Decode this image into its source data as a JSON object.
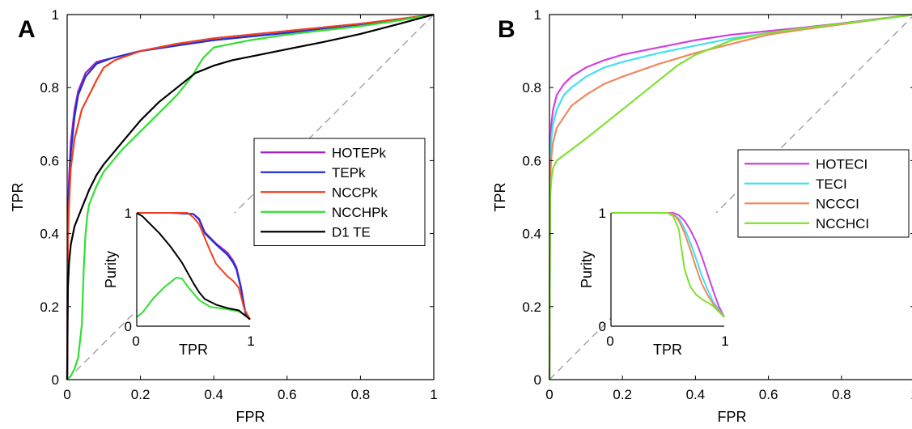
{
  "chart_data": [
    {
      "type": "line",
      "panel_label": "A",
      "xlabel": "FPR",
      "ylabel": "TPR",
      "xlim": [
        0,
        1
      ],
      "ylim": [
        0,
        1
      ],
      "xticks": [
        "0",
        "0.2",
        "0.4",
        "0.6",
        "0.8",
        "1"
      ],
      "yticks": [
        "0",
        "0.2",
        "0.4",
        "0.6",
        "0.8",
        "1"
      ],
      "diagonal_reference": true,
      "legend_placement": "center-right",
      "series": [
        {
          "name": "HOTEPk",
          "color": "#a020c0",
          "x": [
            0,
            0.002,
            0.005,
            0.01,
            0.02,
            0.03,
            0.05,
            0.08,
            0.12,
            0.2,
            0.3,
            0.4,
            0.5,
            0.6,
            0.7,
            0.8,
            0.9,
            1.0
          ],
          "y": [
            0,
            0.45,
            0.55,
            0.65,
            0.74,
            0.79,
            0.84,
            0.87,
            0.88,
            0.9,
            0.92,
            0.935,
            0.945,
            0.955,
            0.965,
            0.975,
            0.987,
            1.0
          ]
        },
        {
          "name": "TEPk",
          "color": "#2030d0",
          "x": [
            0,
            0.002,
            0.005,
            0.01,
            0.02,
            0.03,
            0.05,
            0.08,
            0.12,
            0.2,
            0.3,
            0.4,
            0.5,
            0.6,
            0.7,
            0.8,
            0.9,
            1.0
          ],
          "y": [
            0,
            0.42,
            0.52,
            0.62,
            0.72,
            0.78,
            0.83,
            0.865,
            0.88,
            0.9,
            0.915,
            0.93,
            0.94,
            0.95,
            0.962,
            0.973,
            0.986,
            1.0
          ]
        },
        {
          "name": "NCCPk",
          "color": "#f04020",
          "x": [
            0,
            0.002,
            0.005,
            0.01,
            0.02,
            0.04,
            0.06,
            0.08,
            0.1,
            0.13,
            0.2,
            0.3,
            0.4,
            0.5,
            0.6,
            0.7,
            0.8,
            0.9,
            1.0
          ],
          "y": [
            0,
            0.38,
            0.48,
            0.58,
            0.66,
            0.74,
            0.78,
            0.82,
            0.855,
            0.875,
            0.9,
            0.92,
            0.935,
            0.945,
            0.955,
            0.965,
            0.975,
            0.987,
            1.0
          ]
        },
        {
          "name": "NCCHPk",
          "color": "#30e030",
          "x": [
            0,
            0.01,
            0.02,
            0.03,
            0.04,
            0.045,
            0.05,
            0.055,
            0.06,
            0.08,
            0.1,
            0.15,
            0.2,
            0.25,
            0.3,
            0.34,
            0.37,
            0.4,
            0.5,
            0.6,
            0.7,
            0.8,
            0.9,
            1.0
          ],
          "y": [
            0,
            0.01,
            0.03,
            0.06,
            0.15,
            0.3,
            0.4,
            0.45,
            0.48,
            0.53,
            0.57,
            0.63,
            0.68,
            0.73,
            0.78,
            0.83,
            0.88,
            0.91,
            0.93,
            0.945,
            0.957,
            0.968,
            0.983,
            1.0
          ]
        },
        {
          "name": "D1 TE",
          "color": "#000000",
          "x": [
            0,
            0.002,
            0.005,
            0.01,
            0.02,
            0.04,
            0.06,
            0.08,
            0.1,
            0.15,
            0.2,
            0.25,
            0.3,
            0.35,
            0.4,
            0.45,
            0.5,
            0.6,
            0.7,
            0.8,
            0.9,
            1.0
          ],
          "y": [
            0,
            0.25,
            0.32,
            0.37,
            0.42,
            0.47,
            0.52,
            0.56,
            0.59,
            0.65,
            0.71,
            0.76,
            0.8,
            0.84,
            0.86,
            0.875,
            0.885,
            0.905,
            0.925,
            0.947,
            0.973,
            1.0
          ]
        }
      ],
      "inset": {
        "xlabel": "TPR",
        "ylabel": "Purity",
        "xticks": [
          "0",
          "1"
        ],
        "yticks": [
          "0",
          "1"
        ],
        "series": [
          {
            "name": "HOTEPk",
            "color": "#a020c0",
            "x": [
              0,
              0.1,
              0.3,
              0.5,
              0.55,
              0.6,
              0.7,
              0.8,
              0.85,
              0.88,
              0.92,
              0.96,
              1.0
            ],
            "y": [
              1,
              1,
              1,
              0.99,
              0.95,
              0.83,
              0.73,
              0.65,
              0.58,
              0.52,
              0.35,
              0.12,
              0.06
            ]
          },
          {
            "name": "TEPk",
            "color": "#2030d0",
            "x": [
              0,
              0.1,
              0.3,
              0.5,
              0.55,
              0.6,
              0.7,
              0.8,
              0.85,
              0.88,
              0.92,
              0.96,
              1.0
            ],
            "y": [
              1,
              1,
              1,
              0.99,
              0.94,
              0.82,
              0.72,
              0.63,
              0.56,
              0.5,
              0.33,
              0.11,
              0.06
            ]
          },
          {
            "name": "NCCPk",
            "color": "#f04020",
            "x": [
              0,
              0.1,
              0.3,
              0.45,
              0.5,
              0.55,
              0.6,
              0.65,
              0.7,
              0.8,
              0.85,
              0.9,
              0.95,
              1.0
            ],
            "y": [
              1,
              1,
              1,
              1,
              0.96,
              0.9,
              0.78,
              0.66,
              0.55,
              0.44,
              0.4,
              0.34,
              0.15,
              0.06
            ]
          },
          {
            "name": "NCCHPk",
            "color": "#30e030",
            "x": [
              0,
              0.05,
              0.15,
              0.25,
              0.35,
              0.4,
              0.45,
              0.55,
              0.65,
              0.8,
              0.9,
              0.95,
              1.0
            ],
            "y": [
              0.08,
              0.12,
              0.25,
              0.35,
              0.43,
              0.42,
              0.35,
              0.23,
              0.17,
              0.15,
              0.13,
              0.1,
              0.06
            ]
          },
          {
            "name": "D1 TE",
            "color": "#000000",
            "x": [
              0,
              0.05,
              0.1,
              0.2,
              0.3,
              0.4,
              0.45,
              0.5,
              0.55,
              0.6,
              0.7,
              0.8,
              0.9,
              1.0
            ],
            "y": [
              1,
              0.97,
              0.92,
              0.82,
              0.7,
              0.56,
              0.47,
              0.38,
              0.3,
              0.24,
              0.19,
              0.16,
              0.14,
              0.06
            ]
          }
        ]
      }
    },
    {
      "type": "line",
      "panel_label": "B",
      "xlabel": "FPR",
      "ylabel": "TPR",
      "xlim": [
        0,
        1
      ],
      "ylim": [
        0,
        1
      ],
      "xticks": [
        "0",
        "0.2",
        "0.4",
        "0.6",
        "0.8",
        "1"
      ],
      "yticks": [
        "0",
        "0.2",
        "0.4",
        "0.6",
        "0.8",
        "1"
      ],
      "diagonal_reference": true,
      "legend_placement": "center-right",
      "series": [
        {
          "name": "HOTECI",
          "color": "#d040e0",
          "x": [
            0,
            0.002,
            0.005,
            0.01,
            0.02,
            0.04,
            0.06,
            0.1,
            0.15,
            0.2,
            0.3,
            0.4,
            0.5,
            0.6,
            0.7,
            0.8,
            0.9,
            1.0
          ],
          "y": [
            0,
            0.62,
            0.7,
            0.74,
            0.78,
            0.81,
            0.83,
            0.855,
            0.875,
            0.89,
            0.91,
            0.93,
            0.945,
            0.955,
            0.965,
            0.976,
            0.988,
            1.0
          ]
        },
        {
          "name": "TECI",
          "color": "#40e0f0",
          "x": [
            0,
            0.002,
            0.005,
            0.01,
            0.02,
            0.04,
            0.06,
            0.1,
            0.15,
            0.2,
            0.3,
            0.4,
            0.5,
            0.6,
            0.7,
            0.8,
            0.9,
            1.0
          ],
          "y": [
            0,
            0.58,
            0.66,
            0.7,
            0.74,
            0.78,
            0.8,
            0.83,
            0.855,
            0.87,
            0.895,
            0.915,
            0.935,
            0.95,
            0.962,
            0.974,
            0.987,
            1.0
          ]
        },
        {
          "name": "NCCCI",
          "color": "#f08860",
          "x": [
            0,
            0.002,
            0.005,
            0.01,
            0.02,
            0.04,
            0.06,
            0.1,
            0.15,
            0.2,
            0.3,
            0.4,
            0.5,
            0.6,
            0.7,
            0.8,
            0.9,
            1.0
          ],
          "y": [
            0,
            0.55,
            0.61,
            0.65,
            0.69,
            0.72,
            0.75,
            0.78,
            0.81,
            0.83,
            0.865,
            0.895,
            0.92,
            0.945,
            0.96,
            0.973,
            0.987,
            1.0
          ]
        },
        {
          "name": "NCCHCI",
          "color": "#80e030",
          "x": [
            0,
            0.002,
            0.005,
            0.01,
            0.02,
            0.04,
            0.06,
            0.1,
            0.15,
            0.2,
            0.25,
            0.3,
            0.35,
            0.4,
            0.5,
            0.6,
            0.7,
            0.8,
            0.9,
            1.0
          ],
          "y": [
            0,
            0.5,
            0.55,
            0.58,
            0.6,
            0.615,
            0.63,
            0.66,
            0.7,
            0.74,
            0.78,
            0.82,
            0.86,
            0.89,
            0.93,
            0.95,
            0.963,
            0.975,
            0.987,
            1.0
          ]
        }
      ],
      "inset": {
        "xlabel": "TPR",
        "ylabel": "Purity",
        "xticks": [
          "0",
          "1"
        ],
        "yticks": [
          "0",
          "1"
        ],
        "series": [
          {
            "name": "HOTECI",
            "color": "#d040e0",
            "x": [
              0,
              0.3,
              0.55,
              0.6,
              0.65,
              0.7,
              0.75,
              0.8,
              0.85,
              0.9,
              0.95,
              1.0
            ],
            "y": [
              1,
              1,
              1,
              0.98,
              0.93,
              0.85,
              0.75,
              0.62,
              0.47,
              0.32,
              0.18,
              0.08
            ]
          },
          {
            "name": "TECI",
            "color": "#40e0f0",
            "x": [
              0,
              0.3,
              0.5,
              0.55,
              0.6,
              0.65,
              0.7,
              0.75,
              0.8,
              0.85,
              0.9,
              1.0
            ],
            "y": [
              1,
              1,
              1,
              0.99,
              0.95,
              0.86,
              0.74,
              0.6,
              0.45,
              0.33,
              0.22,
              0.08
            ]
          },
          {
            "name": "NCCCI",
            "color": "#f08860",
            "x": [
              0,
              0.3,
              0.5,
              0.55,
              0.6,
              0.65,
              0.7,
              0.75,
              0.8,
              0.85,
              0.9,
              1.0
            ],
            "y": [
              1,
              1,
              1,
              0.99,
              0.93,
              0.82,
              0.68,
              0.52,
              0.38,
              0.28,
              0.2,
              0.08
            ]
          },
          {
            "name": "NCCHCI",
            "color": "#80e030",
            "x": [
              0,
              0.3,
              0.5,
              0.55,
              0.6,
              0.62,
              0.65,
              0.7,
              0.75,
              0.8,
              0.9,
              1.0
            ],
            "y": [
              1,
              1,
              1,
              0.97,
              0.85,
              0.7,
              0.5,
              0.35,
              0.28,
              0.24,
              0.18,
              0.08
            ]
          }
        ]
      }
    }
  ]
}
